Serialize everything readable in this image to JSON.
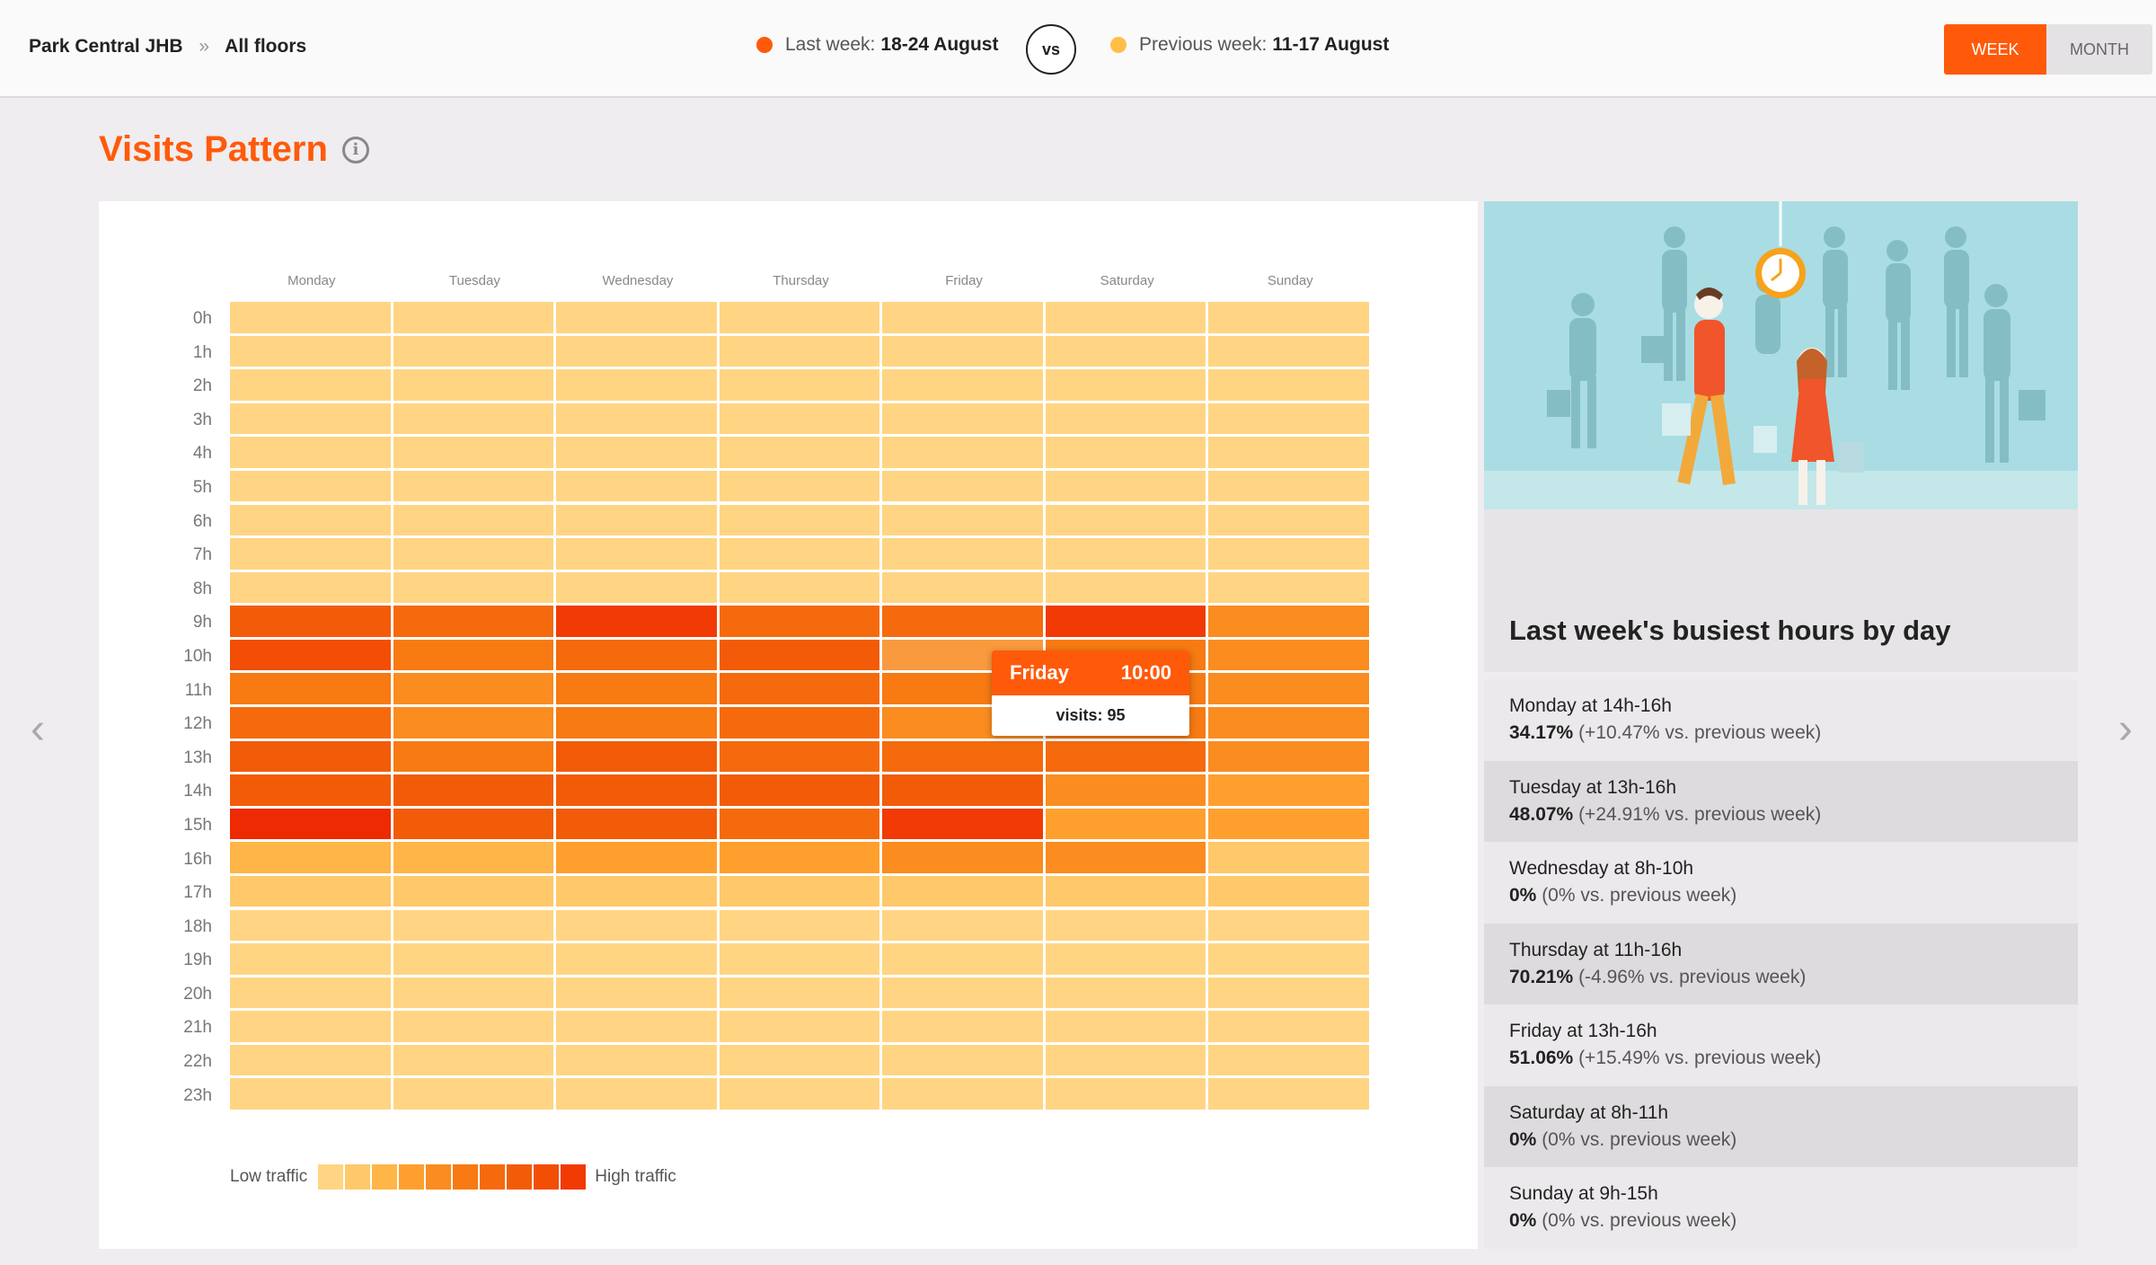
{
  "header": {
    "location": "Park Central JHB",
    "separator": "»",
    "floor": "All floors",
    "last_week_label": "Last week:",
    "last_week_range": "18-24 August",
    "vs": "vs",
    "prev_week_label": "Previous week:",
    "prev_week_range": "11-17 August",
    "toggle_week": "WEEK",
    "toggle_month": "MONTH",
    "colors": {
      "last_week": "#ff5a0a",
      "prev_week": "#ffbf47"
    }
  },
  "page_title": "Visits Pattern",
  "nav": {
    "prev": "‹",
    "next": "›"
  },
  "heatmap": {
    "days": [
      "Monday",
      "Tuesday",
      "Wednesday",
      "Thursday",
      "Friday",
      "Saturday",
      "Sunday"
    ],
    "hours": [
      "0h",
      "1h",
      "2h",
      "3h",
      "4h",
      "5h",
      "6h",
      "7h",
      "8h",
      "9h",
      "10h",
      "11h",
      "12h",
      "13h",
      "14h",
      "15h",
      "16h",
      "17h",
      "18h",
      "19h",
      "20h",
      "21h",
      "22h",
      "23h"
    ],
    "palette": [
      "#ffd583",
      "#ffc86a",
      "#ffb547",
      "#ffa02e",
      "#fb8c1f",
      "#f77a12",
      "#f56a0c",
      "#f25c09",
      "#f24e06",
      "#f23a04",
      "#ee2a02"
    ],
    "levels": [
      [
        0,
        0,
        0,
        0,
        0,
        0,
        0
      ],
      [
        0,
        0,
        0,
        0,
        0,
        0,
        0
      ],
      [
        0,
        0,
        0,
        0,
        0,
        0,
        0
      ],
      [
        0,
        0,
        0,
        0,
        0,
        0,
        0
      ],
      [
        0,
        0,
        0,
        0,
        0,
        0,
        0
      ],
      [
        0,
        0,
        0,
        0,
        0,
        0,
        0
      ],
      [
        0,
        0,
        0,
        0,
        0,
        0,
        0
      ],
      [
        0,
        0,
        0,
        0,
        0,
        0,
        0
      ],
      [
        0,
        0,
        0,
        0,
        0,
        0,
        0
      ],
      [
        7,
        6,
        9,
        6,
        6,
        9,
        4
      ],
      [
        8,
        5,
        6,
        7,
        3,
        5,
        4
      ],
      [
        5,
        4,
        5,
        6,
        5,
        5,
        4
      ],
      [
        6,
        4,
        5,
        6,
        4,
        5,
        4
      ],
      [
        7,
        5,
        7,
        6,
        6,
        6,
        4
      ],
      [
        7,
        7,
        7,
        7,
        7,
        4,
        3
      ],
      [
        10,
        7,
        7,
        6,
        9,
        3,
        3
      ],
      [
        2,
        2,
        3,
        3,
        4,
        4,
        1
      ],
      [
        1,
        1,
        1,
        1,
        1,
        1,
        1
      ],
      [
        0,
        0,
        0,
        0,
        0,
        0,
        0
      ],
      [
        0,
        0,
        0,
        0,
        0,
        0,
        0
      ],
      [
        0,
        0,
        0,
        0,
        0,
        0,
        0
      ],
      [
        0,
        0,
        0,
        0,
        0,
        0,
        0
      ],
      [
        0,
        0,
        0,
        0,
        0,
        0,
        0
      ],
      [
        0,
        0,
        0,
        0,
        0,
        0,
        0
      ]
    ],
    "tooltip": {
      "day": "Friday",
      "time": "10:00",
      "visits": "visits: 95"
    },
    "legend_low": "Low traffic",
    "legend_high": "High traffic"
  },
  "busiest": {
    "title": "Last week's busiest hours by day",
    "rows": [
      {
        "head": "Monday at 14h-16h",
        "pct": "34.17%",
        "cmp": " (+10.47% vs. previous week)"
      },
      {
        "head": "Tuesday at 13h-16h",
        "pct": "48.07%",
        "cmp": " (+24.91% vs. previous week)"
      },
      {
        "head": "Wednesday at 8h-10h",
        "pct": "0%",
        "cmp": " (0% vs. previous week)"
      },
      {
        "head": "Thursday at 11h-16h",
        "pct": "70.21%",
        "cmp": " (-4.96% vs. previous week)"
      },
      {
        "head": "Friday at 13h-16h",
        "pct": "51.06%",
        "cmp": " (+15.49% vs. previous week)"
      },
      {
        "head": "Saturday at 8h-11h",
        "pct": "0%",
        "cmp": " (0% vs. previous week)"
      },
      {
        "head": "Sunday at 9h-15h",
        "pct": "0%",
        "cmp": " (0% vs. previous week)"
      }
    ]
  }
}
